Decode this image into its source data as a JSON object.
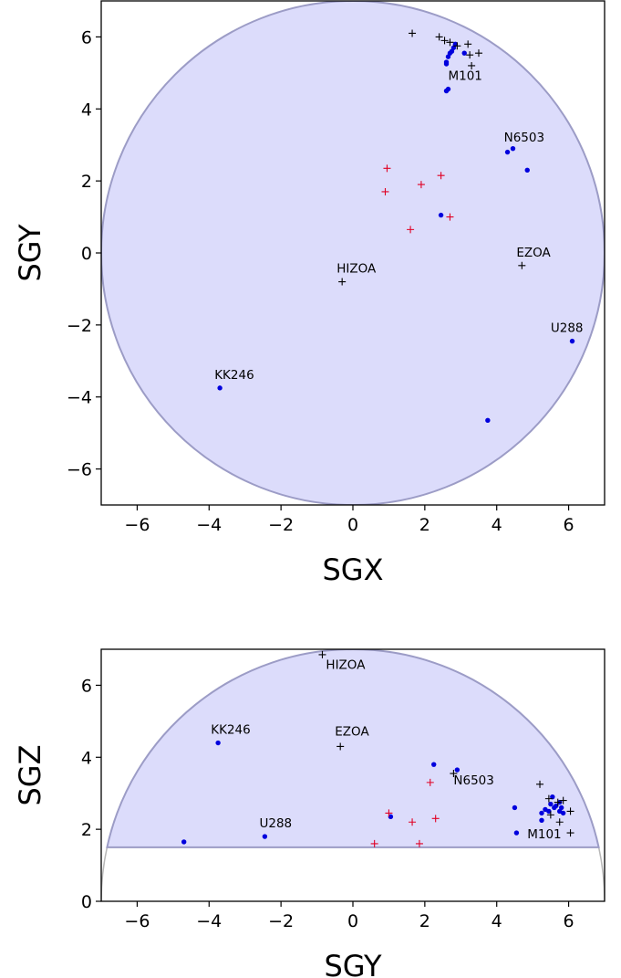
{
  "colors": {
    "region_fill": "#dcdcfb",
    "region_edge": "#9c9cc6",
    "circle_edge_lower": "#b8b8b8",
    "blue_points": "#0000dd",
    "red_markers": "#e00024",
    "black_markers": "#000000"
  },
  "chart_data": [
    {
      "type": "scatter",
      "xlabel": "SGX",
      "ylabel": "SGY",
      "xlim": [
        -7,
        7
      ],
      "ylim": [
        -7,
        7
      ],
      "xticks": [
        -6,
        -4,
        -2,
        0,
        2,
        4,
        6
      ],
      "yticks": [
        -6,
        -4,
        -2,
        0,
        2,
        4,
        6
      ],
      "xtick_labels": [
        "−6",
        "−4",
        "−2",
        "0",
        "2",
        "4",
        "6"
      ],
      "ytick_labels": [
        "−6",
        "−4",
        "−2",
        "0",
        "2",
        "4",
        "6"
      ],
      "grid": false,
      "region": {
        "shape": "circle",
        "radius": 7,
        "center": [
          0,
          0
        ]
      },
      "series": [
        {
          "marker": "dot",
          "x": [
            2.85,
            2.8,
            2.75,
            2.7,
            2.65,
            2.6,
            2.6,
            3.1,
            2.65,
            2.6,
            4.45,
            4.3,
            4.85,
            2.45,
            6.1,
            3.75,
            -3.7
          ],
          "y": [
            5.8,
            5.7,
            5.6,
            5.55,
            5.45,
            5.3,
            5.25,
            5.55,
            4.55,
            4.5,
            2.9,
            2.8,
            2.3,
            1.05,
            -2.45,
            -4.65,
            -3.75
          ]
        },
        {
          "marker": "plus",
          "x": [
            0.95,
            1.9,
            2.45,
            0.9,
            2.7,
            1.6
          ],
          "y": [
            2.35,
            1.9,
            2.15,
            1.7,
            1.0,
            0.65
          ]
        },
        {
          "marker": "plus",
          "x": [
            1.65,
            2.4,
            2.55,
            2.7,
            2.9,
            3.2,
            3.5,
            3.25,
            3.3,
            4.7,
            -0.3
          ],
          "y": [
            6.1,
            6.0,
            5.9,
            5.85,
            5.75,
            5.8,
            5.55,
            5.5,
            5.2,
            -0.35,
            -0.8
          ]
        }
      ],
      "annotations": [
        {
          "text": "M101",
          "x": 2.65,
          "y": 4.8
        },
        {
          "text": "N6503",
          "x": 4.2,
          "y": 3.1
        },
        {
          "text": "EZOA",
          "x": 4.55,
          "y": -0.1
        },
        {
          "text": "HIZOA",
          "x": -0.45,
          "y": -0.55
        },
        {
          "text": "U288",
          "x": 5.5,
          "y": -2.2
        },
        {
          "text": "KK246",
          "x": -3.85,
          "y": -3.5
        }
      ]
    },
    {
      "type": "scatter",
      "xlabel": "SGY",
      "ylabel": "SGZ",
      "xlim": [
        -7,
        7
      ],
      "ylim": [
        0,
        7
      ],
      "xticks": [
        -6,
        -4,
        -2,
        0,
        2,
        4,
        6
      ],
      "yticks": [
        0,
        2,
        4,
        6
      ],
      "xtick_labels": [
        "−6",
        "−4",
        "−2",
        "0",
        "2",
        "4",
        "6"
      ],
      "ytick_labels": [
        "0",
        "2",
        "4",
        "6"
      ],
      "grid": false,
      "region": {
        "shape": "circle-segment",
        "radius": 7,
        "center": [
          0,
          0
        ],
        "z_min": 1.5
      },
      "series": [
        {
          "marker": "dot",
          "x": [
            -3.75,
            2.25,
            2.9,
            1.05,
            4.5,
            5.55,
            5.5,
            5.35,
            5.25,
            5.75,
            5.65,
            5.45,
            5.6,
            5.8,
            5.75,
            5.85,
            5.25,
            4.55,
            -4.7,
            -2.45
          ],
          "y": [
            4.4,
            3.8,
            3.65,
            2.35,
            2.6,
            2.9,
            2.7,
            2.55,
            2.45,
            2.75,
            2.65,
            2.5,
            2.6,
            2.6,
            2.5,
            2.45,
            2.25,
            1.9,
            1.65,
            1.8
          ]
        },
        {
          "marker": "plus",
          "x": [
            2.15,
            1.0,
            2.3,
            1.65,
            0.6,
            1.85
          ],
          "y": [
            3.3,
            2.45,
            2.3,
            2.2,
            1.6,
            1.6
          ]
        },
        {
          "marker": "plus",
          "x": [
            -0.85,
            -0.35,
            2.8,
            5.2,
            5.45,
            5.7,
            5.85,
            6.05,
            5.5,
            5.75,
            6.05
          ],
          "y": [
            6.85,
            4.3,
            3.55,
            3.25,
            2.85,
            2.75,
            2.8,
            2.5,
            2.4,
            2.2,
            1.9
          ]
        }
      ],
      "annotations": [
        {
          "text": "HIZOA",
          "x": -0.75,
          "y": 6.45
        },
        {
          "text": "KK246",
          "x": -3.95,
          "y": 4.65
        },
        {
          "text": "EZOA",
          "x": -0.5,
          "y": 4.6
        },
        {
          "text": "N6503",
          "x": 2.8,
          "y": 3.25
        },
        {
          "text": "U288",
          "x": -2.6,
          "y": 2.05
        },
        {
          "text": "M101",
          "x": 4.85,
          "y": 1.75
        }
      ]
    }
  ]
}
